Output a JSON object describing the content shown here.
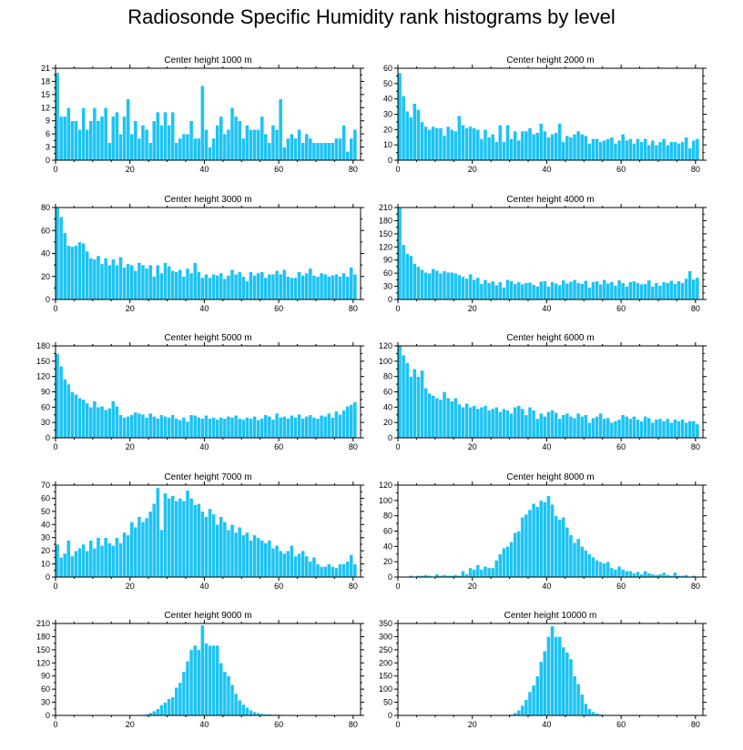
{
  "title": "Radiosonde Specific Humidity rank histograms by level",
  "style": {
    "bar_color": "#1cc3f5",
    "bar_edge": "#ffffff",
    "axis_color": "#000000"
  },
  "chart_data": [
    {
      "type": "bar",
      "title": "Center height 1000 m",
      "ylim": [
        0,
        21
      ],
      "yticks": [
        0,
        3,
        6,
        9,
        12,
        15,
        18,
        21
      ],
      "ytick_labels": [
        "0",
        "3",
        "6",
        "9",
        "12",
        "15",
        "18",
        "21"
      ],
      "xlim": [
        0,
        82
      ],
      "xticks": [
        0,
        20,
        40,
        60,
        80
      ],
      "xtick_labels": [
        "0",
        "20",
        "40",
        "60",
        "80"
      ],
      "values": [
        20,
        10,
        10,
        12,
        9,
        9,
        7,
        12,
        7,
        9,
        12,
        9,
        10,
        12,
        4,
        10,
        11,
        6,
        10,
        14,
        6,
        9,
        5,
        8,
        7,
        4,
        9,
        11,
        8,
        11,
        8,
        11,
        4,
        5,
        6,
        6,
        9,
        5,
        5,
        17,
        7,
        3,
        5,
        8,
        10,
        6,
        7,
        12,
        10,
        9,
        5,
        8,
        7,
        7,
        7,
        10,
        6,
        4,
        8,
        7,
        14,
        3,
        5,
        6,
        5,
        7,
        4,
        6,
        5,
        4,
        4,
        4,
        4,
        4,
        4,
        5,
        5,
        8,
        2,
        5,
        7
      ]
    },
    {
      "type": "bar",
      "title": "Center height 2000 m",
      "ylim": [
        0,
        60
      ],
      "yticks": [
        0,
        10,
        20,
        30,
        40,
        50,
        60
      ],
      "ytick_labels": [
        "0",
        "10",
        "20",
        "30",
        "40",
        "50",
        "60"
      ],
      "xlim": [
        0,
        82
      ],
      "xticks": [
        0,
        20,
        40,
        60,
        80
      ],
      "xtick_labels": [
        "0",
        "20",
        "40",
        "60",
        "80"
      ],
      "values": [
        57,
        42,
        32,
        28,
        37,
        33,
        25,
        22,
        20,
        22,
        21,
        21,
        16,
        22,
        20,
        19,
        29,
        23,
        21,
        22,
        21,
        20,
        14,
        20,
        15,
        17,
        12,
        23,
        12,
        23,
        14,
        19,
        13,
        19,
        19,
        21,
        17,
        18,
        24,
        19,
        15,
        17,
        18,
        24,
        12,
        16,
        15,
        17,
        19,
        17,
        16,
        11,
        14,
        14,
        12,
        13,
        14,
        15,
        11,
        13,
        17,
        13,
        14,
        11,
        14,
        12,
        14,
        10,
        13,
        10,
        12,
        14,
        10,
        12,
        12,
        11,
        12,
        15,
        8,
        13,
        14
      ]
    },
    {
      "type": "bar",
      "title": "Center height 3000 m",
      "ylim": [
        0,
        80
      ],
      "yticks": [
        0,
        20,
        40,
        60,
        80
      ],
      "ytick_labels": [
        "0",
        "20",
        "40",
        "60",
        "80"
      ],
      "xlim": [
        0,
        82
      ],
      "xticks": [
        0,
        20,
        40,
        60,
        80
      ],
      "xtick_labels": [
        "0",
        "20",
        "40",
        "60",
        "80"
      ],
      "values": [
        80,
        72,
        58,
        47,
        46,
        47,
        50,
        49,
        42,
        36,
        35,
        38,
        31,
        36,
        30,
        35,
        30,
        37,
        28,
        31,
        30,
        25,
        32,
        30,
        27,
        30,
        20,
        30,
        23,
        32,
        29,
        25,
        24,
        26,
        20,
        27,
        23,
        32,
        24,
        19,
        22,
        19,
        22,
        21,
        23,
        18,
        21,
        26,
        22,
        24,
        20,
        16,
        24,
        21,
        23,
        24,
        19,
        22,
        22,
        25,
        22,
        26,
        20,
        19,
        19,
        24,
        21,
        23,
        27,
        21,
        20,
        23,
        22,
        20,
        21,
        22,
        20,
        23,
        20,
        28,
        22
      ]
    },
    {
      "type": "bar",
      "title": "Center height 4000 m",
      "ylim": [
        0,
        210
      ],
      "yticks": [
        0,
        30,
        60,
        90,
        120,
        150,
        180,
        210
      ],
      "ytick_labels": [
        "0",
        "30",
        "60",
        "90",
        "120",
        "150",
        "180",
        "210"
      ],
      "xlim": [
        0,
        82
      ],
      "xticks": [
        0,
        20,
        40,
        60,
        80
      ],
      "xtick_labels": [
        "0",
        "20",
        "40",
        "60",
        "80"
      ],
      "values": [
        210,
        125,
        105,
        100,
        82,
        75,
        68,
        62,
        60,
        70,
        66,
        60,
        65,
        62,
        62,
        60,
        56,
        52,
        48,
        58,
        45,
        50,
        36,
        45,
        38,
        42,
        33,
        40,
        28,
        45,
        42,
        36,
        40,
        35,
        38,
        39,
        34,
        30,
        41,
        42,
        30,
        40,
        37,
        33,
        44,
        37,
        41,
        45,
        38,
        36,
        43,
        28,
        40,
        42,
        35,
        45,
        37,
        40,
        32,
        44,
        38,
        30,
        40,
        42,
        38,
        35,
        36,
        44,
        30,
        38,
        32,
        40,
        38,
        43,
        36,
        42,
        38,
        48,
        65,
        46,
        50
      ]
    },
    {
      "type": "bar",
      "title": "Center height 5000 m",
      "ylim": [
        0,
        180
      ],
      "yticks": [
        0,
        30,
        60,
        90,
        120,
        150,
        180
      ],
      "ytick_labels": [
        "0",
        "30",
        "60",
        "90",
        "120",
        "150",
        "180"
      ],
      "xlim": [
        0,
        82
      ],
      "xticks": [
        0,
        20,
        40,
        60,
        80
      ],
      "xtick_labels": [
        "0",
        "20",
        "40",
        "60",
        "80"
      ],
      "values": [
        165,
        140,
        115,
        105,
        90,
        85,
        78,
        75,
        68,
        60,
        72,
        60,
        62,
        55,
        58,
        72,
        62,
        45,
        40,
        42,
        45,
        50,
        48,
        46,
        40,
        48,
        42,
        38,
        45,
        42,
        40,
        45,
        38,
        35,
        40,
        32,
        45,
        44,
        40,
        38,
        44,
        38,
        40,
        36,
        40,
        38,
        42,
        40,
        44,
        38,
        36,
        40,
        38,
        42,
        35,
        38,
        45,
        42,
        36,
        48,
        40,
        42,
        38,
        44,
        40,
        46,
        38,
        42,
        45,
        40,
        38,
        44,
        42,
        48,
        40,
        52,
        46,
        54,
        62,
        65,
        70
      ]
    },
    {
      "type": "bar",
      "title": "Center height 6000 m",
      "ylim": [
        0,
        120
      ],
      "yticks": [
        0,
        20,
        40,
        60,
        80,
        100,
        120
      ],
      "ytick_labels": [
        "0",
        "20",
        "40",
        "60",
        "80",
        "100",
        "120"
      ],
      "xlim": [
        0,
        82
      ],
      "xticks": [
        0,
        20,
        40,
        60,
        80
      ],
      "xtick_labels": [
        "0",
        "20",
        "40",
        "60",
        "80"
      ],
      "values": [
        120,
        108,
        98,
        80,
        90,
        80,
        88,
        65,
        58,
        55,
        52,
        50,
        60,
        52,
        48,
        52,
        44,
        40,
        45,
        40,
        42,
        38,
        40,
        42,
        36,
        38,
        40,
        34,
        38,
        36,
        32,
        40,
        42,
        38,
        30,
        40,
        36,
        25,
        32,
        28,
        34,
        36,
        33,
        25,
        30,
        32,
        28,
        26,
        32,
        28,
        30,
        20,
        26,
        28,
        32,
        25,
        26,
        20,
        22,
        24,
        30,
        28,
        25,
        28,
        24,
        22,
        28,
        26,
        20,
        24,
        25,
        22,
        25,
        20,
        24,
        22,
        24,
        20,
        22,
        22,
        18
      ]
    },
    {
      "type": "bar",
      "title": "Center height 7000 m",
      "ylim": [
        0,
        70
      ],
      "yticks": [
        0,
        10,
        20,
        30,
        40,
        50,
        60,
        70
      ],
      "ytick_labels": [
        "0",
        "10",
        "20",
        "30",
        "40",
        "50",
        "60",
        "70"
      ],
      "xlim": [
        0,
        82
      ],
      "xticks": [
        0,
        20,
        40,
        60,
        80
      ],
      "xtick_labels": [
        "0",
        "20",
        "40",
        "60",
        "80"
      ],
      "values": [
        25,
        15,
        18,
        28,
        16,
        20,
        22,
        25,
        20,
        28,
        22,
        30,
        24,
        30,
        26,
        24,
        30,
        26,
        34,
        32,
        42,
        38,
        46,
        42,
        45,
        50,
        56,
        68,
        36,
        64,
        60,
        62,
        58,
        60,
        58,
        66,
        60,
        55,
        56,
        50,
        46,
        52,
        48,
        40,
        46,
        42,
        36,
        40,
        34,
        38,
        32,
        34,
        28,
        32,
        30,
        28,
        26,
        28,
        22,
        24,
        20,
        18,
        20,
        24,
        16,
        18,
        20,
        16,
        12,
        15,
        10,
        8,
        8,
        10,
        8,
        7,
        10,
        10,
        12,
        17,
        10
      ]
    },
    {
      "type": "bar",
      "title": "Center height 8000 m",
      "ylim": [
        0,
        120
      ],
      "yticks": [
        0,
        20,
        40,
        60,
        80,
        100,
        120
      ],
      "ytick_labels": [
        "0",
        "20",
        "40",
        "60",
        "80",
        "100",
        "120"
      ],
      "xlim": [
        0,
        82
      ],
      "xticks": [
        0,
        20,
        40,
        60,
        80
      ],
      "xtick_labels": [
        "0",
        "20",
        "40",
        "60",
        "80"
      ],
      "values": [
        0,
        0,
        1,
        2,
        1,
        2,
        2,
        3,
        2,
        1,
        4,
        2,
        3,
        2,
        2,
        3,
        2,
        8,
        4,
        12,
        10,
        16,
        10,
        14,
        12,
        12,
        22,
        30,
        38,
        40,
        46,
        58,
        60,
        78,
        82,
        88,
        96,
        92,
        100,
        98,
        106,
        95,
        80,
        75,
        78,
        65,
        55,
        45,
        50,
        40,
        35,
        30,
        26,
        22,
        20,
        18,
        20,
        12,
        10,
        14,
        10,
        8,
        8,
        5,
        7,
        4,
        8,
        5,
        4,
        3,
        4,
        6,
        3,
        2,
        6,
        2,
        2,
        3,
        1,
        2,
        1
      ]
    },
    {
      "type": "bar",
      "title": "Center height 9000 m",
      "ylim": [
        0,
        210
      ],
      "yticks": [
        0,
        30,
        60,
        90,
        120,
        150,
        180,
        210
      ],
      "ytick_labels": [
        "0",
        "30",
        "60",
        "90",
        "120",
        "150",
        "180",
        "210"
      ],
      "xlim": [
        0,
        82
      ],
      "xticks": [
        0,
        20,
        40,
        60,
        80
      ],
      "xtick_labels": [
        "0",
        "20",
        "40",
        "60",
        "80"
      ],
      "values": [
        0,
        0,
        0,
        0,
        0,
        0,
        0,
        0,
        0,
        0,
        0,
        0,
        0,
        0,
        0,
        0,
        0,
        0,
        0,
        0,
        0,
        0,
        1,
        2,
        3,
        6,
        10,
        15,
        24,
        30,
        38,
        42,
        64,
        75,
        100,
        124,
        150,
        160,
        150,
        206,
        165,
        160,
        160,
        160,
        120,
        100,
        90,
        70,
        50,
        35,
        25,
        18,
        12,
        8,
        6,
        4,
        3,
        3,
        2,
        2,
        2,
        1,
        1,
        1,
        0,
        0,
        0,
        0,
        0,
        0,
        0,
        0,
        0,
        0,
        0,
        0,
        0,
        0,
        0,
        0,
        0
      ]
    },
    {
      "type": "bar",
      "title": "Center height 10000 m",
      "ylim": [
        0,
        350
      ],
      "yticks": [
        0,
        50,
        100,
        150,
        200,
        250,
        300,
        350
      ],
      "ytick_labels": [
        "0",
        "50",
        "100",
        "150",
        "200",
        "250",
        "300",
        "350"
      ],
      "xlim": [
        0,
        82
      ],
      "xticks": [
        0,
        20,
        40,
        60,
        80
      ],
      "xtick_labels": [
        "0",
        "20",
        "40",
        "60",
        "80"
      ],
      "values": [
        0,
        0,
        0,
        0,
        0,
        0,
        0,
        0,
        0,
        0,
        0,
        0,
        0,
        0,
        0,
        0,
        0,
        0,
        0,
        0,
        0,
        0,
        0,
        0,
        0,
        0,
        0,
        0,
        1,
        2,
        5,
        10,
        20,
        38,
        60,
        90,
        115,
        150,
        205,
        245,
        300,
        340,
        300,
        300,
        260,
        240,
        215,
        150,
        120,
        80,
        45,
        25,
        14,
        8,
        5,
        3,
        2,
        1,
        1,
        1,
        0,
        0,
        0,
        0,
        0,
        0,
        0,
        0,
        0,
        0,
        0,
        0,
        0,
        0,
        0,
        0,
        0,
        0,
        0,
        0,
        0
      ]
    }
  ]
}
